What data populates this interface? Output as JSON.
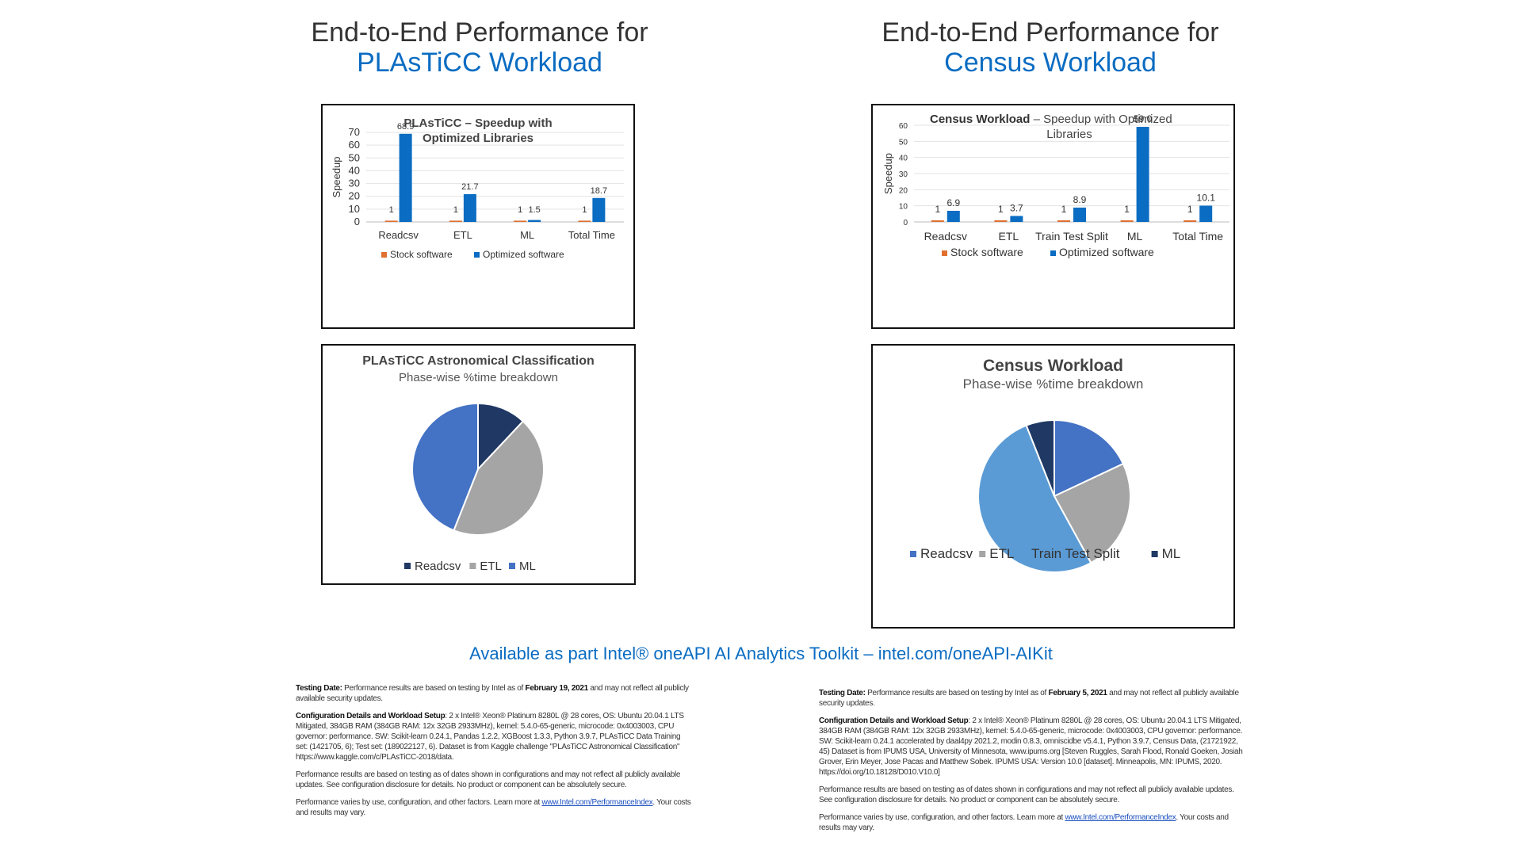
{
  "headings": [
    {
      "line1": "End-to-End Performance for",
      "line2": "PLAsTiCC Workload"
    },
    {
      "line1": "End-to-End Performance for",
      "line2": "Census Workload"
    }
  ],
  "colors": {
    "stock": "#e07030",
    "optimized": "#0a6cc2",
    "title_blue": "#0a6cc2",
    "pie_dark_navy": "#1f3864",
    "pie_gray": "#a5a5a5",
    "pie_blue": "#4472c4",
    "pie_light_blue": "#5b9bd5"
  },
  "chart_data": [
    {
      "id": "plasticc-bar",
      "type": "bar",
      "title": "PLAsTiCC – Speedup with Optimized Libraries",
      "ylabel": "Speedup",
      "xlabel": "",
      "categories": [
        "Readcsv",
        "ETL",
        "ML",
        "Total Time"
      ],
      "series": [
        {
          "name": "Stock software",
          "values": [
            1,
            1,
            1,
            1
          ],
          "labels": [
            "1",
            "1",
            "1",
            "1"
          ],
          "color": "#e07030"
        },
        {
          "name": "Optimized software",
          "values": [
            68.9,
            21.7,
            1.5,
            18.7
          ],
          "labels": [
            "68.9",
            "21.7",
            "1.5",
            "18.7"
          ],
          "color": "#0a6cc2"
        }
      ],
      "ylim": [
        0,
        70
      ],
      "yticks": [
        0,
        10,
        20,
        30,
        40,
        50,
        60,
        70
      ],
      "grid": true,
      "legend": "bottom"
    },
    {
      "id": "census-bar",
      "type": "bar",
      "title_bold": "Census Workload",
      "title_rest": " – Speedup with Optimized Libraries",
      "ylabel": "Speedup",
      "xlabel": "",
      "categories": [
        "Readcsv",
        "ETL",
        "Train Test Split",
        "ML",
        "Total Time"
      ],
      "series": [
        {
          "name": "Stock software",
          "values": [
            1,
            1,
            1,
            1,
            1
          ],
          "labels": [
            "1",
            "1",
            "1",
            "1",
            "1"
          ],
          "color": "#e07030"
        },
        {
          "name": "Optimized software",
          "values": [
            6.9,
            3.7,
            8.9,
            59.0,
            10.1
          ],
          "labels": [
            "6.9",
            "3.7",
            "8.9",
            "59.0",
            "10.1"
          ],
          "color": "#0a6cc2"
        }
      ],
      "ylim": [
        0,
        60
      ],
      "yticks": [
        0,
        10,
        20,
        30,
        40,
        50,
        60
      ],
      "grid": true,
      "legend": "bottom"
    },
    {
      "id": "plasticc-pie",
      "type": "pie",
      "title": "PLAsTiCC Astronomical Classification",
      "subtitle": "Phase-wise %time breakdown",
      "labels": [
        "Readcsv",
        "ETL",
        "ML"
      ],
      "values": [
        12,
        44,
        44
      ],
      "colors": [
        "#1f3864",
        "#a5a5a5",
        "#4472c4"
      ],
      "legend": "bottom"
    },
    {
      "id": "census-pie",
      "type": "pie",
      "title": "Census Workload",
      "subtitle": "Phase-wise %time breakdown",
      "labels": [
        "Readcsv",
        "ETL",
        "Train Test Split",
        "ML"
      ],
      "values": [
        18,
        24,
        52,
        6
      ],
      "colors": [
        "#4472c4",
        "#a5a5a5",
        "#5b9bd5",
        "#1f3864"
      ],
      "legend": "bottom"
    }
  ],
  "toolkit_line": "Available as part Intel® oneAPI AI Analytics Toolkit – intel.com/oneAPI-AIKit",
  "disclaimers": [
    {
      "testing_label": "Testing Date:",
      "testing_text": " Performance results are based on testing by Intel as of ",
      "testing_date": "February 19, 2021",
      "testing_tail": " and may not reflect all publicly available security updates.",
      "config_label": "Configuration Details and Workload Setup",
      "config_text": ": 2 x Intel® Xeon® Platinum 8280L @ 28 cores, OS: Ubuntu 20.04.1 LTS Mitigated, 384GB RAM (384GB RAM: 12x 32GB 2933MHz), kernel: 5.4.0-65-generic, microcode: 0x4003003, CPU governor: performance. SW: Scikit-learn 0.24.1, Pandas 1.2.2, XGBoost 1.3.3, Python 3.9.7, PLAsTiCC Data Training set: (1421705, 6); Test set: (189022127, 6). Dataset is from Kaggle challenge \"PLAsTiCC Astronomical Classification\" https://www.kaggle.com/c/PLAsTiCC-2018/data.",
      "perf_text": "Performance results are based on testing as of dates shown in configurations and may not reflect all publicly available updates. See configuration disclosure for details. No product or component can be absolutely secure.",
      "varies_text": "Performance varies by use, configuration, and other factors. Learn more at ",
      "varies_link": "www.Intel.com/PerformanceIndex",
      "varies_tail": ". Your costs and results may vary."
    },
    {
      "testing_label": "Testing Date:",
      "testing_text": " Performance results are based on testing by Intel as of ",
      "testing_date": "February 5, 2021",
      "testing_tail": " and may not reflect all publicly available security updates.",
      "config_label": "Configuration Details and Workload Setup",
      "config_text": ": 2 x Intel® Xeon® Platinum 8280L @ 28 cores, OS: Ubuntu 20.04.1 LTS Mitigated, 384GB RAM (384GB RAM: 12x 32GB 2933MHz), kernel: 5.4.0-65-generic, microcode: 0x4003003, CPU governor: performance. SW: Scikit-learn 0.24.1 accelerated by daal4py 2021.2, modin 0.8.3, omniscidbe v5.4.1, Python 3.9.7, Census Data, (21721922, 45) Dataset is from IPUMS USA, University of Minnesota, www.ipums.org [Steven Ruggles, Sarah Flood, Ronald Goeken, Josiah Grover, Erin Meyer, Jose Pacas and Matthew Sobek. IPUMS USA: Version 10.0 [dataset]. Minneapolis, MN: IPUMS, 2020. https://doi.org/10.18128/D010.V10.0]",
      "perf_text": "Performance results are based on testing as of dates shown in configurations and may not reflect all publicly available updates. See configuration disclosure for details. No product or component can be absolutely secure.",
      "varies_text": "Performance varies by use, configuration, and other factors. Learn more at ",
      "varies_link": "www.Intel.com/PerformanceIndex",
      "varies_tail": ". Your costs and results may vary."
    }
  ]
}
